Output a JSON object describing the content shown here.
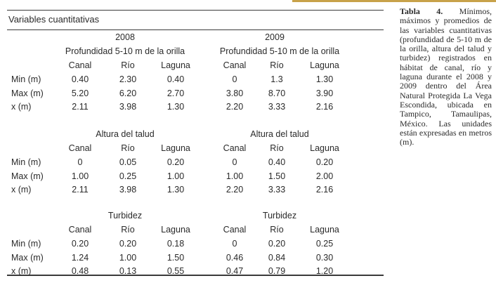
{
  "table": {
    "caption": "Variables cuantitativas",
    "years": [
      "2008",
      "2009"
    ],
    "column_headers": [
      "Canal",
      "Río",
      "Laguna"
    ],
    "sections": [
      {
        "title": "Profundidad 5-10 m de la orilla",
        "rows": [
          {
            "label": "Min (m)",
            "values": [
              "0.40",
              "2.30",
              "0.40",
              "0",
              "1.3",
              "1.30"
            ]
          },
          {
            "label": "Max (m)",
            "values": [
              "5.20",
              "6.20",
              "2.70",
              "3.80",
              "8.70",
              "3.90"
            ]
          },
          {
            "label": "x (m)",
            "values": [
              "2.11",
              "3.98",
              "1.30",
              "2.20",
              "3.33",
              "2.16"
            ]
          }
        ]
      },
      {
        "title": "Altura del talud",
        "rows": [
          {
            "label": "Min (m)",
            "values": [
              "0",
              "0.05",
              "0.20",
              "0",
              "0.40",
              "0.20"
            ]
          },
          {
            "label": "Max (m)",
            "values": [
              "1.00",
              "0.25",
              "1.00",
              "1.00",
              "1.50",
              "2.00"
            ]
          },
          {
            "label": "x (m)",
            "values": [
              "2.11",
              "3.98",
              "1.30",
              "2.20",
              "3.33",
              "2.16"
            ]
          }
        ]
      },
      {
        "title": "Turbidez",
        "rows": [
          {
            "label": "Min (m)",
            "values": [
              "0.20",
              "0.20",
              "0.18",
              "0",
              "0.20",
              "0.25"
            ]
          },
          {
            "label": "Max (m)",
            "values": [
              "1.24",
              "1.00",
              "1.50",
              "0.46",
              "0.84",
              "0.30"
            ]
          },
          {
            "label": "x (m)",
            "values": [
              "0.48",
              "0.13",
              "0.55",
              "0.47",
              "0.79",
              "1.20"
            ]
          }
        ]
      }
    ]
  },
  "caption": {
    "label": "Tabla 4.",
    "text": "Mínimos, máximos y promedios de las variables cuantitativas (profundidad de 5-10 m de la orilla, altura del talud y turbidez) registrados en hábitat de canal, río y laguna durante el 2008 y 2009 dentro del Área Natural Protegida La Vega Escondida, ubicada en Tampico, Tamaulipas, México. Las unidades están expresadas en metros (m)."
  },
  "colors": {
    "rule": "#3a3a3a",
    "accent": "#c8a24a",
    "text": "#2a2a2a"
  }
}
